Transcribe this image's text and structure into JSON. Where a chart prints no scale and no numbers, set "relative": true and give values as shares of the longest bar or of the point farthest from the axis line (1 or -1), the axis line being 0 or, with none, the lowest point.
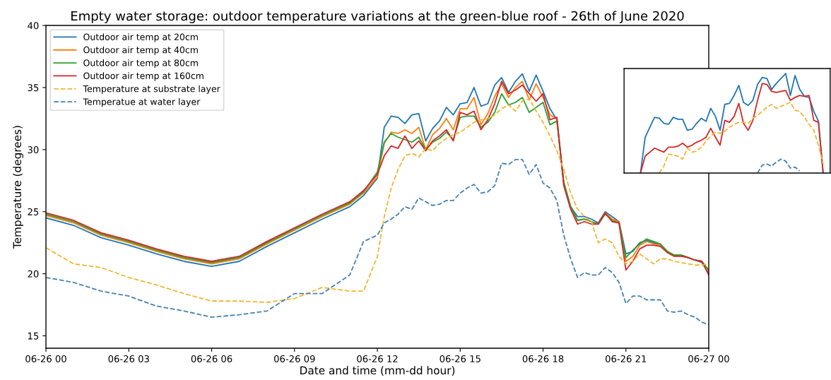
{
  "chart_data": [
    {
      "type": "line",
      "title": "Empty water storage: outdoor temperature variations at the green-blue roof - 26th of June 2020",
      "xlabel": "Date and time (mm-dd hour)",
      "ylabel": "Temperature (degrees)",
      "x": [
        "2020-06-26T00:00",
        "2020-06-26T01:00",
        "2020-06-26T02:00",
        "2020-06-26T03:00",
        "2020-06-26T04:00",
        "2020-06-26T05:00",
        "2020-06-26T06:00",
        "2020-06-26T07:00",
        "2020-06-26T08:00",
        "2020-06-26T09:00",
        "2020-06-26T10:00",
        "2020-06-26T11:00",
        "2020-06-26T11:30",
        "2020-06-26T12:00",
        "2020-06-26T12:15",
        "2020-06-26T12:30",
        "2020-06-26T12:45",
        "2020-06-26T13:00",
        "2020-06-26T13:15",
        "2020-06-26T13:30",
        "2020-06-26T13:45",
        "2020-06-26T14:00",
        "2020-06-26T14:15",
        "2020-06-26T14:30",
        "2020-06-26T14:45",
        "2020-06-26T15:00",
        "2020-06-26T15:15",
        "2020-06-26T15:30",
        "2020-06-26T15:45",
        "2020-06-26T16:00",
        "2020-06-26T16:15",
        "2020-06-26T16:30",
        "2020-06-26T16:45",
        "2020-06-26T17:00",
        "2020-06-26T17:15",
        "2020-06-26T17:30",
        "2020-06-26T17:45",
        "2020-06-26T18:00",
        "2020-06-26T18:15",
        "2020-06-26T18:30",
        "2020-06-26T18:45",
        "2020-06-26T19:00",
        "2020-06-26T19:15",
        "2020-06-26T19:30",
        "2020-06-26T19:45",
        "2020-06-26T20:00",
        "2020-06-26T20:15",
        "2020-06-26T20:30",
        "2020-06-26T20:45",
        "2020-06-26T21:00",
        "2020-06-26T21:15",
        "2020-06-26T21:30",
        "2020-06-26T21:45",
        "2020-06-26T22:00",
        "2020-06-26T22:15",
        "2020-06-26T22:30",
        "2020-06-26T22:45",
        "2020-06-26T23:00",
        "2020-06-26T23:15",
        "2020-06-26T23:30",
        "2020-06-26T23:45",
        "2020-06-27T00:00"
      ],
      "xlim": [
        "2020-06-26T00:00",
        "2020-06-27T00:00"
      ],
      "xticks": [
        {
          "value": "2020-06-26T00:00",
          "label": "06-26 00"
        },
        {
          "value": "2020-06-26T03:00",
          "label": "06-26 03"
        },
        {
          "value": "2020-06-26T06:00",
          "label": "06-26 06"
        },
        {
          "value": "2020-06-26T09:00",
          "label": "06-26 09"
        },
        {
          "value": "2020-06-26T12:00",
          "label": "06-26 12"
        },
        {
          "value": "2020-06-26T15:00",
          "label": "06-26 15"
        },
        {
          "value": "2020-06-26T18:00",
          "label": "06-26 18"
        },
        {
          "value": "2020-06-26T21:00",
          "label": "06-26 21"
        },
        {
          "value": "2020-06-27T00:00",
          "label": "06-27 00"
        }
      ],
      "ylim": [
        14,
        40
      ],
      "yticks": [
        15,
        20,
        25,
        30,
        35,
        40
      ],
      "legend": "top left",
      "grid": false,
      "series": [
        {
          "name": "Outdoor air temp at 20cm",
          "color": "#1f77b4",
          "line_style": "solid",
          "values": [
            24.5,
            23.9,
            22.9,
            22.3,
            21.6,
            21.0,
            20.6,
            21.0,
            22.2,
            23.3,
            24.4,
            25.4,
            26.3,
            27.7,
            31.8,
            32.7,
            32.6,
            32.1,
            32.8,
            32.9,
            30.7,
            31.7,
            32.3,
            33.4,
            32.8,
            33.7,
            33.8,
            35.0,
            33.5,
            33.7,
            35.2,
            35.8,
            34.6,
            35.5,
            36.1,
            34.7,
            36.0,
            34.7,
            33.3,
            32.4,
            27.3,
            25.4,
            24.6,
            24.6,
            24.4,
            24.1,
            25.0,
            24.6,
            24.2,
            21.6,
            21.8,
            22.5,
            22.7,
            22.5,
            22.3,
            21.8,
            21.5,
            21.5,
            21.3,
            21.1,
            20.9,
            20.1
          ]
        },
        {
          "name": "Outdoor air temp at 40cm",
          "color": "#ff7f0e",
          "line_style": "solid",
          "values": [
            24.7,
            24.1,
            23.1,
            22.5,
            21.8,
            21.2,
            20.8,
            21.2,
            22.4,
            23.5,
            24.6,
            25.6,
            26.5,
            27.8,
            30.5,
            31.4,
            31.3,
            31.6,
            31.3,
            31.8,
            30.0,
            31.2,
            31.7,
            32.5,
            31.6,
            33.3,
            33.3,
            34.2,
            32.0,
            32.9,
            34.3,
            35.3,
            34.2,
            35.0,
            35.5,
            34.0,
            35.3,
            34.2,
            32.8,
            32.5,
            27.2,
            25.3,
            24.3,
            24.4,
            24.2,
            24.0,
            24.9,
            24.4,
            24.2,
            21.0,
            21.4,
            22.3,
            22.6,
            22.4,
            22.3,
            21.8,
            21.5,
            21.5,
            21.3,
            21.1,
            21.0,
            20.0
          ]
        },
        {
          "name": "Outdoor air temp at 80cm",
          "color": "#2ca02c",
          "line_style": "solid",
          "values": [
            24.8,
            24.2,
            23.2,
            22.6,
            21.9,
            21.3,
            20.9,
            21.3,
            22.5,
            23.6,
            24.7,
            25.7,
            26.6,
            28.2,
            30.6,
            31.3,
            31.0,
            30.8,
            30.6,
            31.0,
            30.0,
            30.6,
            30.9,
            31.4,
            30.8,
            32.6,
            32.7,
            32.7,
            31.8,
            32.2,
            33.0,
            34.5,
            33.6,
            33.8,
            34.2,
            33.0,
            33.4,
            33.8,
            32.0,
            32.3,
            27.4,
            25.4,
            24.3,
            24.4,
            24.2,
            24.0,
            24.8,
            24.3,
            24.1,
            21.3,
            21.9,
            22.4,
            22.8,
            22.6,
            22.4,
            21.8,
            21.5,
            21.5,
            21.3,
            21.1,
            21.0,
            20.3
          ]
        },
        {
          "name": "Outdoor air temp at 160cm",
          "color": "#d62728",
          "line_style": "solid",
          "values": [
            24.9,
            24.3,
            23.3,
            22.7,
            22.0,
            21.4,
            21.0,
            21.4,
            22.6,
            23.7,
            24.8,
            25.8,
            26.7,
            28.0,
            29.5,
            30.3,
            30.1,
            31.1,
            30.1,
            30.7,
            29.9,
            30.7,
            31.1,
            31.6,
            30.7,
            33.0,
            32.8,
            33.1,
            31.6,
            32.4,
            33.7,
            35.5,
            34.5,
            34.8,
            35.2,
            34.5,
            33.9,
            34.5,
            32.4,
            32.6,
            27.1,
            25.2,
            24.0,
            24.2,
            24.0,
            24.0,
            24.9,
            24.2,
            24.1,
            20.3,
            21.0,
            22.0,
            22.3,
            22.3,
            22.2,
            21.7,
            21.4,
            21.4,
            21.3,
            21.1,
            21.0,
            19.9
          ]
        },
        {
          "name": "Temperature at substrate layer",
          "color": "#f2b632",
          "line_style": "dashed",
          "values": [
            22.1,
            20.8,
            20.5,
            19.7,
            19.1,
            18.4,
            17.8,
            17.8,
            17.7,
            18.0,
            18.9,
            18.6,
            18.6,
            21.4,
            24.6,
            26.9,
            28.4,
            29.5,
            29.7,
            29.4,
            30.1,
            29.9,
            30.5,
            30.9,
            31.2,
            31.4,
            31.8,
            32.2,
            32.4,
            32.5,
            32.8,
            33.3,
            33.6,
            33.1,
            33.9,
            34.1,
            33.1,
            32.2,
            31.1,
            29.9,
            28.4,
            26.5,
            25.2,
            24.6,
            24.2,
            22.5,
            22.8,
            22.5,
            21.4,
            20.8,
            21.0,
            21.6,
            21.2,
            20.8,
            21.2,
            21.2,
            21.0,
            20.9,
            20.8,
            20.7,
            20.7,
            20.8
          ]
        },
        {
          "name": "Temperatue at water layer",
          "color": "#4682b4",
          "line_style": "dashed",
          "values": [
            19.7,
            19.3,
            18.6,
            18.2,
            17.4,
            17.0,
            16.5,
            16.7,
            17.0,
            18.4,
            18.4,
            19.9,
            22.6,
            23.1,
            24.1,
            24.4,
            24.8,
            25.4,
            25.2,
            26.1,
            25.8,
            25.5,
            25.6,
            25.9,
            25.9,
            26.5,
            26.9,
            27.2,
            26.5,
            26.6,
            27.1,
            28.9,
            28.8,
            29.2,
            29.2,
            28.0,
            28.8,
            27.3,
            26.9,
            25.9,
            23.1,
            21.2,
            19.7,
            20.1,
            19.9,
            19.9,
            20.5,
            20.1,
            19.3,
            17.6,
            18.2,
            18.2,
            17.9,
            17.9,
            17.9,
            17.0,
            16.9,
            17.0,
            16.7,
            16.5,
            16.1,
            15.9
          ]
        }
      ]
    },
    {
      "type": "line",
      "relative": true,
      "categories": [
        null,
        null,
        null,
        null,
        null,
        null,
        null,
        null,
        null,
        null,
        null,
        null,
        null,
        null,
        null,
        null,
        null,
        null,
        null,
        null,
        null,
        null,
        null,
        null,
        null,
        null,
        null,
        null,
        null,
        null,
        null,
        null,
        null,
        null,
        null,
        null,
        null,
        null,
        null,
        null,
        null
      ],
      "series": [
        {
          "color": "#1f77b4",
          "line_style": "solid",
          "values": [
            0,
            0.36,
            0.46,
            0.56,
            0.55,
            0.5,
            0.49,
            0.56,
            0.54,
            0.54,
            0.43,
            0.44,
            0.5,
            0.55,
            0.52,
            0.65,
            0.57,
            0.43,
            0.69,
            0.7,
            0.78,
            0.88,
            0.71,
            0.68,
            0.73,
            0.89,
            0.96,
            0.95,
            0.84,
            0.9,
            0.95,
            1.0,
            0.78,
            0.98,
            0.84,
            0.77,
            0.76,
            0.62,
            0.52,
            0,
            null
          ]
        },
        {
          "color": "#d62728",
          "line_style": "solid",
          "values": [
            0,
            0.17,
            0.21,
            0.25,
            0.23,
            0.21,
            0.26,
            0.26,
            0.27,
            0.3,
            0.26,
            0.28,
            0.31,
            0.33,
            0.36,
            0.45,
            0.36,
            0.28,
            0.53,
            0.51,
            0.57,
            0.7,
            0.5,
            0.43,
            0.53,
            0.73,
            0.9,
            0.89,
            0.82,
            0.81,
            0.82,
            0.83,
            0.73,
            0.76,
            0.78,
            0.77,
            0.78,
            0.53,
            0.51,
            0,
            null
          ]
        },
        {
          "color": "#f2b632",
          "line_style": "dashed",
          "values": [
            null,
            null,
            null,
            null,
            0,
            0.07,
            0.19,
            0.18,
            0.17,
            0.14,
            0.25,
            0.21,
            0.22,
            0.26,
            0.32,
            0.37,
            0.41,
            0.4,
            0.42,
            0.46,
            0.49,
            0.51,
            0.51,
            0.5,
            0.55,
            0.58,
            0.62,
            0.66,
            0.69,
            0.65,
            0.67,
            0.69,
            0.71,
            0.63,
            0.62,
            0.56,
            0.49,
            0.43,
            0.28,
            0.09,
            null
          ]
        },
        {
          "color": "#4682b4",
          "line_style": "dashed",
          "values": [
            null,
            null,
            null,
            null,
            null,
            null,
            null,
            null,
            null,
            null,
            null,
            null,
            null,
            null,
            null,
            null,
            null,
            null,
            null,
            null,
            null,
            null,
            null,
            null,
            null,
            0,
            0.08,
            0.09,
            0.07,
            0.11,
            0.14,
            0.12,
            0.05,
            0.06,
            0.02,
            null,
            null,
            null,
            null,
            null,
            null
          ]
        }
      ]
    }
  ]
}
